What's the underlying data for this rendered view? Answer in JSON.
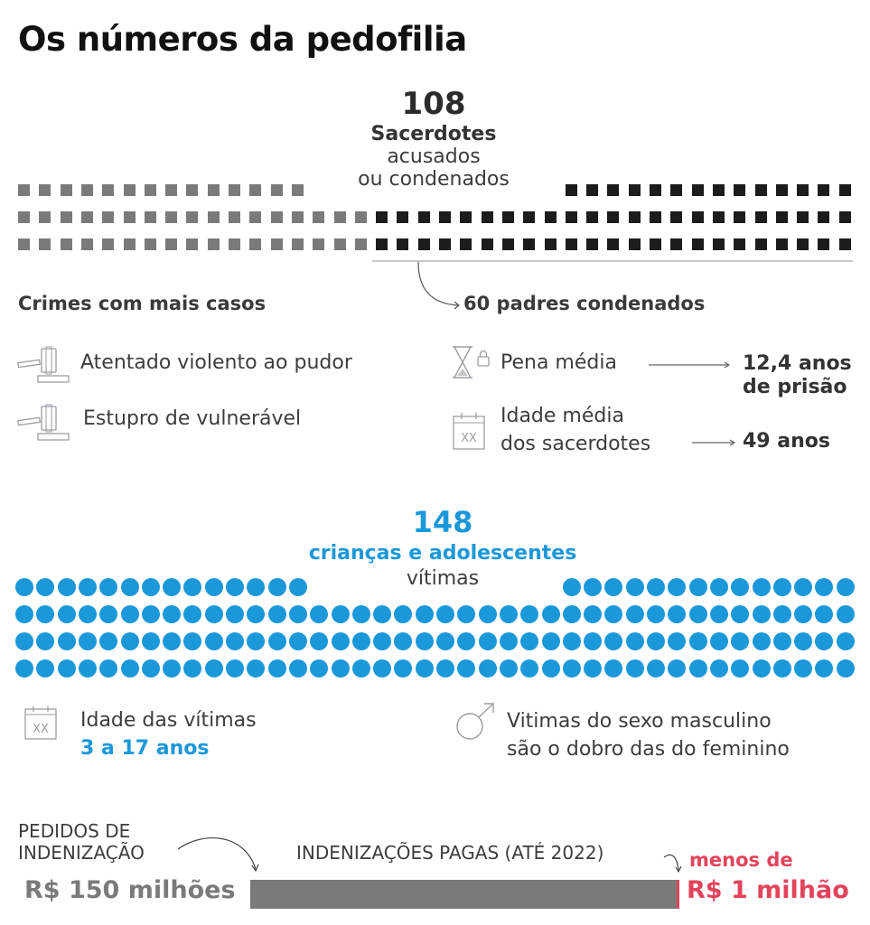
{
  "title": "Os números da pedofilia",
  "priests": {
    "total": "108",
    "label_bold": "Sacerdotes",
    "label_line2": "acusados",
    "label_line3": "ou condenados",
    "condemned_label": "60 padres condenados",
    "colors": {
      "accused": "#7a7a7a",
      "condemned": "#1c1c1c"
    }
  },
  "crimes": {
    "heading": "Crimes com mais casos",
    "items": [
      {
        "icon": "gavel-icon",
        "label": "Atentado violento ao pudor"
      },
      {
        "icon": "gavel-icon",
        "label": "Estupro de vulnerável"
      }
    ]
  },
  "condemned_stats": {
    "items": [
      {
        "icon": "hourglass-lock-icon",
        "label": "Pena média",
        "value_line1": "12,4 anos",
        "value_line2": "de prisão"
      },
      {
        "icon": "calendar-xx-icon",
        "label_line1": "Idade média",
        "label_line2": "dos sacerdotes",
        "value": "49 anos"
      }
    ]
  },
  "victims": {
    "total": "148",
    "label_bold": "crianças e adolescentes",
    "label_line2": "vítimas",
    "color": "#1b98d9",
    "age": {
      "icon": "calendar-xx-icon",
      "label": "Idade das vítimas",
      "value": "3 a 17 anos"
    },
    "gender": {
      "icon": "male-symbol-icon",
      "line1": "Vitimas do sexo masculino",
      "line2": "são o dobro das do feminino"
    }
  },
  "compensation": {
    "requested_label_line1": "PEDIDOS DE",
    "requested_label_line2": "INDENIZAÇÃO",
    "requested_value": "R$ 150 milhões",
    "paid_label": "INDENIZAÇÕES PAGAS (ATÉ 2022)",
    "paid_prefix": "menos de",
    "paid_value": "R$ 1 milhão",
    "accent": "#e2435b"
  },
  "chart_data": [
    {
      "type": "table",
      "title": "Sacerdotes acusados ou condenados (waffle)",
      "categories": [
        "Acusados (não condenados)",
        "Condenados"
      ],
      "values": [
        48,
        60
      ],
      "total": 108
    },
    {
      "type": "table",
      "title": "Crianças e adolescentes vítimas (waffle)",
      "categories": [
        "Vítimas"
      ],
      "values": [
        148
      ]
    },
    {
      "type": "bar",
      "title": "Indenizações",
      "categories": [
        "Pedidos de indenização",
        "Indenizações pagas (até 2022)"
      ],
      "values": [
        150,
        1
      ],
      "ylabel": "R$ milhões"
    }
  ]
}
